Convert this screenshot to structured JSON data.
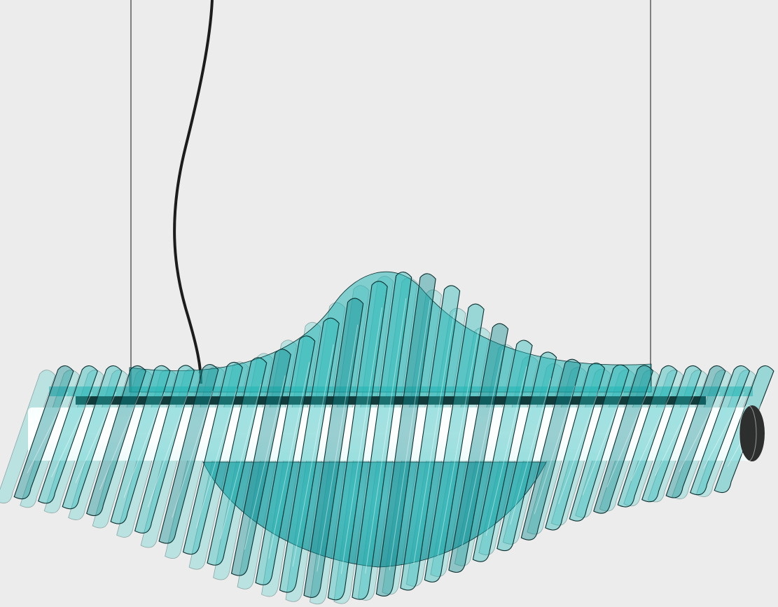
{
  "colors": {
    "background": "#ececec",
    "fin_fill": "#27b8b8",
    "fin_fill_light": "#7fd6d4",
    "fin_fill_dark": "#0f8d92",
    "fin_outline": "#0b2f2f",
    "tube_light": "#ffffff",
    "rail": "#123c3c",
    "end_cap": "#2d2f2f",
    "cable": "#1c1c1c",
    "wire": "#3a3a3a"
  },
  "icons": {
    "product": "pendant-lamp-icon"
  }
}
